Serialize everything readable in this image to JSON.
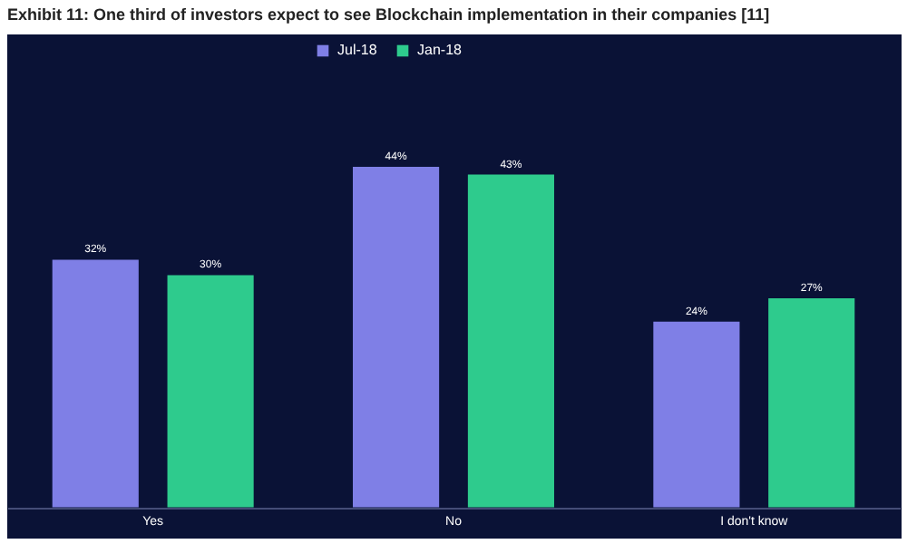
{
  "chart_data": {
    "type": "bar",
    "title": "Exhibit 11: One third of investors expect to see Blockchain implementation in their companies [11]",
    "categories": [
      "Yes",
      "No",
      "I don't know"
    ],
    "series": [
      {
        "name": "Jul-18",
        "color": "#7f7fe6",
        "values": [
          32,
          44,
          24
        ],
        "value_labels": [
          "32%",
          "44%",
          "24%"
        ]
      },
      {
        "name": "Jan-18",
        "color": "#2ecb8d",
        "values": [
          30,
          43,
          27
        ],
        "value_labels": [
          "30%",
          "43%",
          "27%"
        ]
      }
    ],
    "legend": "top",
    "grid": false
  }
}
